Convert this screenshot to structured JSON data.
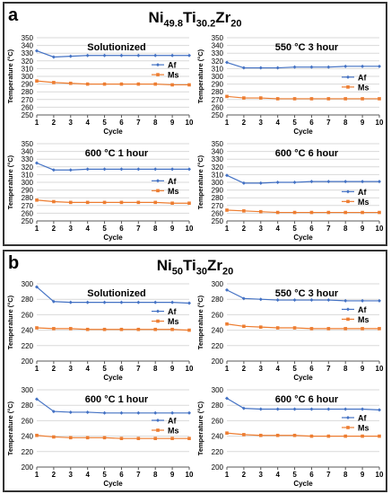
{
  "panels": [
    {
      "letter": "a",
      "title": [
        [
          "Ni",
          ""
        ],
        [
          "49.8",
          ""
        ],
        [
          "Ti",
          ""
        ],
        [
          "30.2",
          ""
        ],
        [
          "Zr",
          ""
        ],
        [
          "20",
          ""
        ]
      ],
      "title_parts": {
        "ni": "Ni",
        "ni_sub": "49.8",
        "ti": "Ti",
        "ti_sub": "30.2",
        "zr": "Zr",
        "zr_sub": "20"
      }
    },
    {
      "letter": "b",
      "title_parts": {
        "ni": "Ni",
        "ni_sub": "50",
        "ti": "Ti",
        "ti_sub": "30",
        "zr": "Zr",
        "zr_sub": "20"
      }
    }
  ],
  "colors": {
    "af": "#4472C4",
    "ms": "#ED7D31",
    "grid": "#d9d9d9",
    "axis": "#595959"
  },
  "chart_data": [
    {
      "type": "line",
      "panel": "a",
      "title": "Solutionized",
      "xlabel": "Cycle",
      "ylabel": "Temperature (°C)",
      "x": [
        1,
        2,
        3,
        4,
        5,
        6,
        7,
        8,
        9,
        10
      ],
      "ylim": [
        250,
        350
      ],
      "yticks": [
        250,
        260,
        270,
        280,
        290,
        300,
        310,
        320,
        330,
        340,
        350
      ],
      "grid": true,
      "legend": "right",
      "series": [
        {
          "name": "Af",
          "values": [
            333,
            325,
            326,
            327,
            327,
            327,
            327,
            327,
            327,
            327
          ]
        },
        {
          "name": "Ms",
          "values": [
            294,
            292,
            291,
            290,
            290,
            290,
            290,
            290,
            289,
            289
          ]
        }
      ]
    },
    {
      "type": "line",
      "panel": "a",
      "title": "550 °C 3 hour",
      "xlabel": "Cycle",
      "ylabel": "Temperature (°C)",
      "x": [
        1,
        2,
        3,
        4,
        5,
        6,
        7,
        8,
        9,
        10
      ],
      "ylim": [
        250,
        350
      ],
      "yticks": [
        250,
        260,
        270,
        280,
        290,
        300,
        310,
        320,
        330,
        340,
        350
      ],
      "grid": true,
      "legend": "right",
      "series": [
        {
          "name": "Af",
          "values": [
            318,
            311,
            311,
            311,
            312,
            312,
            312,
            313,
            313,
            313
          ]
        },
        {
          "name": "Ms",
          "values": [
            274,
            272,
            272,
            271,
            271,
            271,
            271,
            271,
            271,
            271
          ]
        }
      ]
    },
    {
      "type": "line",
      "panel": "a",
      "title": "600 °C 1 hour",
      "xlabel": "Cycle",
      "ylabel": "Temperature (°C)",
      "x": [
        1,
        2,
        3,
        4,
        5,
        6,
        7,
        8,
        9,
        10
      ],
      "ylim": [
        250,
        350
      ],
      "yticks": [
        250,
        260,
        270,
        280,
        290,
        300,
        310,
        320,
        330,
        340,
        350
      ],
      "grid": true,
      "legend": "right",
      "series": [
        {
          "name": "Af",
          "values": [
            325,
            316,
            316,
            317,
            317,
            317,
            317,
            317,
            317,
            317
          ]
        },
        {
          "name": "Ms",
          "values": [
            277,
            275,
            274,
            274,
            274,
            274,
            274,
            274,
            273,
            273
          ]
        }
      ]
    },
    {
      "type": "line",
      "panel": "a",
      "title": "600 °C 6 hour",
      "xlabel": "Cycle",
      "ylabel": "Temperature (°C)",
      "x": [
        1,
        2,
        3,
        4,
        5,
        6,
        7,
        8,
        9,
        10
      ],
      "ylim": [
        250,
        350
      ],
      "yticks": [
        250,
        260,
        270,
        280,
        290,
        300,
        310,
        320,
        330,
        340,
        350
      ],
      "grid": true,
      "legend": "right",
      "series": [
        {
          "name": "Af",
          "values": [
            309,
            299,
            299,
            300,
            300,
            301,
            301,
            301,
            301,
            301
          ]
        },
        {
          "name": "Ms",
          "values": [
            264,
            263,
            262,
            261,
            261,
            261,
            261,
            261,
            261,
            261
          ]
        }
      ]
    },
    {
      "type": "line",
      "panel": "b",
      "title": "Solutionized",
      "xlabel": "Cycle",
      "ylabel": "Temperature (°C)",
      "x": [
        1,
        2,
        3,
        4,
        5,
        6,
        7,
        8,
        9,
        10
      ],
      "ylim": [
        200,
        300
      ],
      "yticks": [
        200,
        220,
        240,
        260,
        280,
        300
      ],
      "grid": true,
      "legend": "right",
      "series": [
        {
          "name": "Af",
          "values": [
            296,
            277,
            276,
            276,
            276,
            276,
            276,
            276,
            276,
            275
          ]
        },
        {
          "name": "Ms",
          "values": [
            243,
            242,
            242,
            241,
            241,
            241,
            241,
            241,
            241,
            240
          ]
        }
      ]
    },
    {
      "type": "line",
      "panel": "b",
      "title": "550 °C 3 hour",
      "xlabel": "Cycle",
      "ylabel": "Temperature (°C)",
      "x": [
        1,
        2,
        3,
        4,
        5,
        6,
        7,
        8,
        9,
        10
      ],
      "ylim": [
        200,
        300
      ],
      "yticks": [
        200,
        220,
        240,
        260,
        280,
        300
      ],
      "grid": true,
      "legend": "right",
      "series": [
        {
          "name": "Af",
          "values": [
            292,
            281,
            280,
            279,
            279,
            279,
            279,
            278,
            278,
            278
          ]
        },
        {
          "name": "Ms",
          "values": [
            248,
            245,
            244,
            243,
            243,
            242,
            242,
            242,
            242,
            242
          ]
        }
      ]
    },
    {
      "type": "line",
      "panel": "b",
      "title": "600 °C 1 hour",
      "xlabel": "Cycle",
      "ylabel": "Temperature (°C)",
      "x": [
        1,
        2,
        3,
        4,
        5,
        6,
        7,
        8,
        9,
        10
      ],
      "ylim": [
        200,
        300
      ],
      "yticks": [
        200,
        220,
        240,
        260,
        280,
        300
      ],
      "grid": true,
      "legend": "right",
      "series": [
        {
          "name": "Af",
          "values": [
            288,
            272,
            271,
            271,
            270,
            270,
            270,
            270,
            270,
            270
          ]
        },
        {
          "name": "Ms",
          "values": [
            241,
            239,
            238,
            238,
            238,
            237,
            237,
            237,
            237,
            237
          ]
        }
      ]
    },
    {
      "type": "line",
      "panel": "b",
      "title": "600 °C 6 hour",
      "xlabel": "Cycle",
      "ylabel": "Temperature (°C)",
      "x": [
        1,
        2,
        3,
        4,
        5,
        6,
        7,
        8,
        9,
        10
      ],
      "ylim": [
        200,
        300
      ],
      "yticks": [
        200,
        220,
        240,
        260,
        280,
        300
      ],
      "grid": true,
      "legend": "right",
      "series": [
        {
          "name": "Af",
          "values": [
            289,
            276,
            275,
            275,
            275,
            275,
            275,
            275,
            275,
            274
          ]
        },
        {
          "name": "Ms",
          "values": [
            244,
            242,
            241,
            241,
            241,
            240,
            240,
            240,
            240,
            240
          ]
        }
      ]
    }
  ]
}
